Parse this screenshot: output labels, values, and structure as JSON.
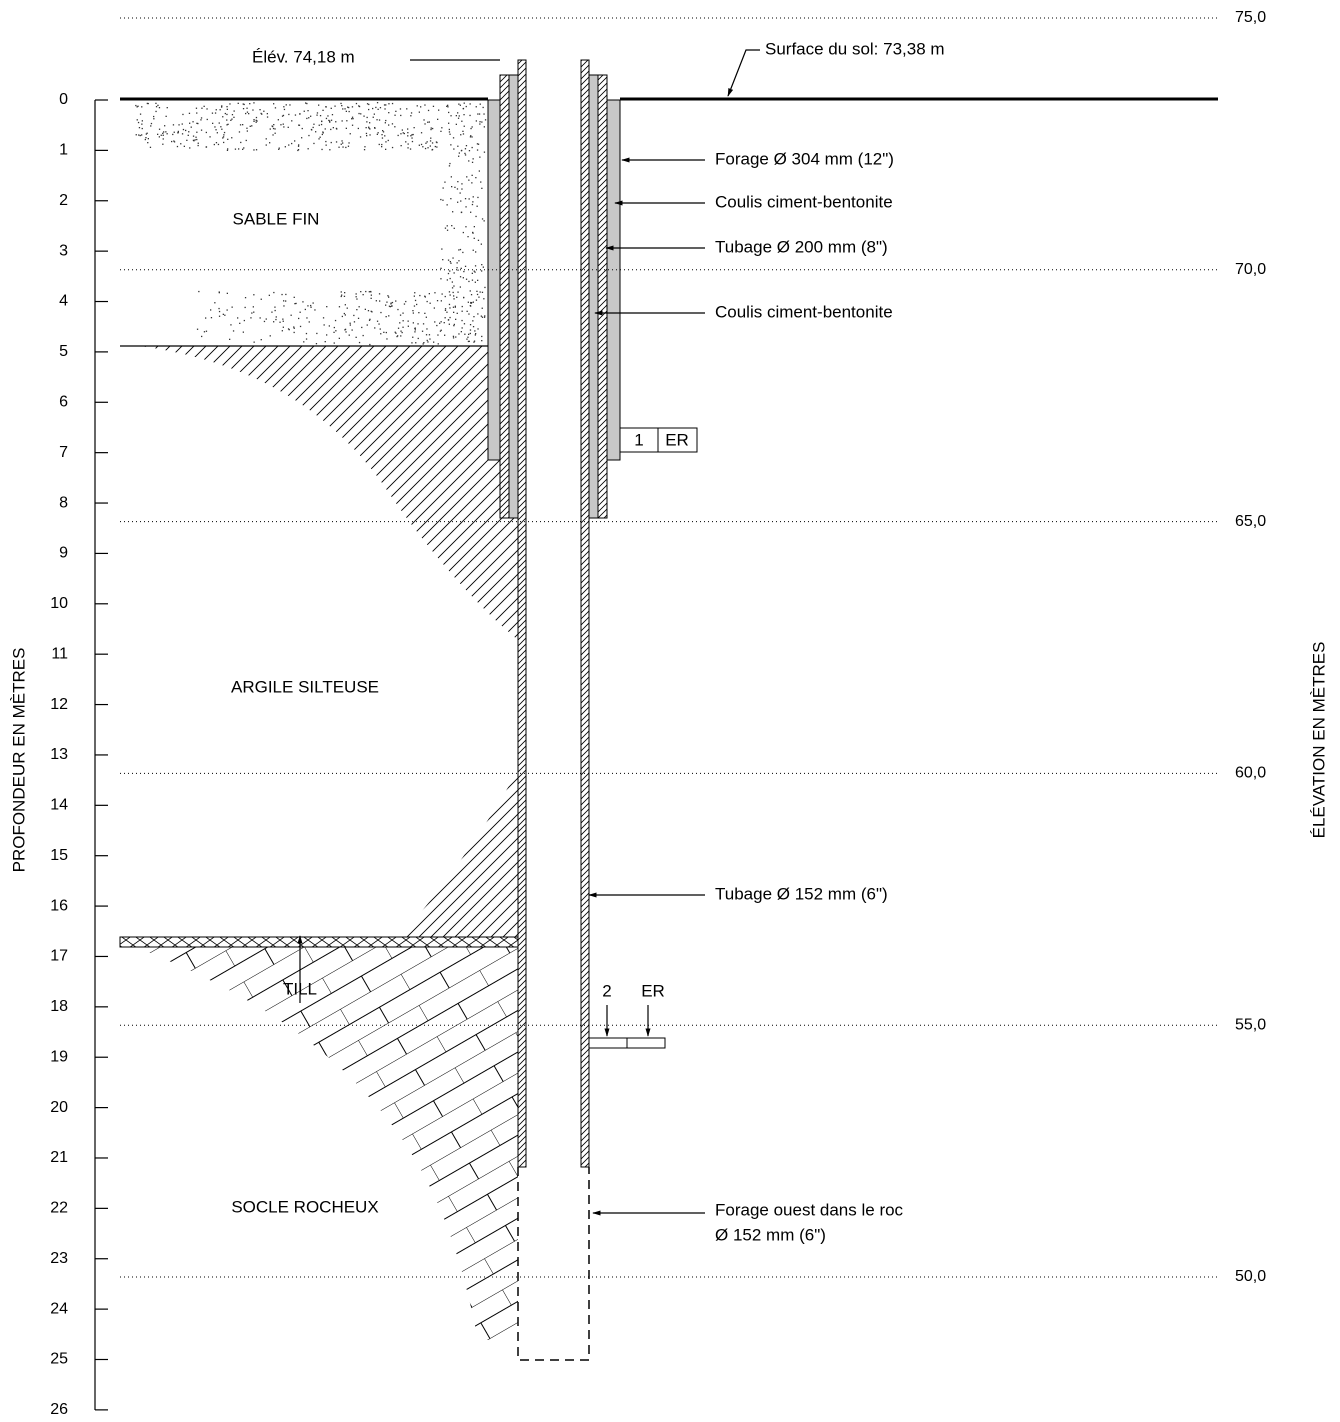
{
  "depth_axis": {
    "title": "PROFONDEUR EN MÈTRES",
    "ticks": [
      0,
      1,
      2,
      3,
      4,
      5,
      6,
      7,
      8,
      9,
      10,
      11,
      12,
      13,
      14,
      15,
      16,
      17,
      18,
      19,
      20,
      21,
      22,
      23,
      24,
      25,
      26
    ]
  },
  "elevation_axis": {
    "title": "ÉLÉVATION EN MÈTRES",
    "ticks": [
      {
        "value": 75,
        "label": "75,0"
      },
      {
        "value": 70,
        "label": "70,0"
      },
      {
        "value": 65,
        "label": "65,0"
      },
      {
        "value": 60,
        "label": "60,0"
      },
      {
        "value": 55,
        "label": "55,0"
      },
      {
        "value": 50,
        "label": "50,0"
      }
    ]
  },
  "layers": [
    {
      "label": "SABLE FIN"
    },
    {
      "label": "ARGILE SILTEUSE"
    },
    {
      "label": "TILL"
    },
    {
      "label": "SOCLE ROCHEUX"
    }
  ],
  "annotations": {
    "top_elevation": "Élév. 74,18 m",
    "ground_surface": "Surface du sol: 73,38 m",
    "callouts": [
      {
        "lines": [
          "Forage Ø 304 mm (12\")"
        ]
      },
      {
        "lines": [
          "Coulis ciment-bentonite"
        ]
      },
      {
        "lines": [
          "Tubage Ø 200 mm (8\")"
        ]
      },
      {
        "lines": [
          "Coulis ciment-bentonite"
        ]
      },
      {
        "lines": [
          "Tubage Ø 152 mm (6\")"
        ]
      },
      {
        "lines": [
          "Forage ouest dans le roc",
          "Ø 152 mm (6\")"
        ]
      }
    ]
  },
  "instruments": [
    {
      "number": "1",
      "type": "ER"
    },
    {
      "number": "2",
      "type": "ER"
    }
  ]
}
